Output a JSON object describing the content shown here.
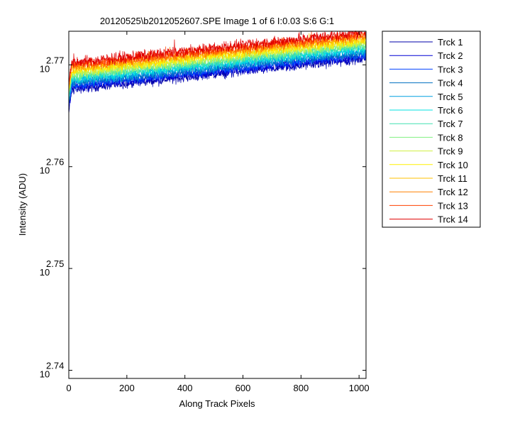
{
  "chart_data": {
    "type": "line",
    "title": "20120525\\b2012052607.SPE  Image 1 of 6  I:0.03  S:6  G:1",
    "xlabel": "Along Track Pixels",
    "ylabel": "Intensity (ADU)",
    "x_scale": "linear",
    "y_scale": "log",
    "xlim": [
      0,
      1024
    ],
    "ylim_log10": [
      2.7392,
      2.7733
    ],
    "grid": false,
    "legend_position": "outside-right",
    "x_ticks": [
      "0",
      "200",
      "400",
      "600",
      "800",
      "1000"
    ],
    "x_tick_values": [
      0,
      200,
      400,
      600,
      800,
      1000
    ],
    "y_ticks": [
      {
        "base": "10",
        "exponent": "2.74",
        "log10": 2.74
      },
      {
        "base": "10",
        "exponent": "2.75",
        "log10": 2.75
      },
      {
        "base": "10",
        "exponent": "2.76",
        "log10": 2.76
      },
      {
        "base": "10",
        "exponent": "2.77",
        "log10": 2.77
      }
    ],
    "series_trend_note": "",
    "series": [
      {
        "name": "Trck 1",
        "color": "#0000AA",
        "log10_at_x": [
          [
            0,
            2.7652
          ],
          [
            10,
            2.7676
          ],
          [
            1024,
            2.7706
          ]
        ],
        "noise": 0.0007
      },
      {
        "name": "Trck 2",
        "color": "#0000D4",
        "log10_at_x": [
          [
            0,
            2.7656
          ],
          [
            10,
            2.7678
          ],
          [
            1024,
            2.7708
          ]
        ],
        "noise": 0.0007
      },
      {
        "name": "Trck 3",
        "color": "#0040FF",
        "log10_at_x": [
          [
            0,
            2.766
          ],
          [
            10,
            2.768
          ],
          [
            1024,
            2.771
          ]
        ],
        "noise": 0.0007
      },
      {
        "name": "Trck 4",
        "color": "#0070C0",
        "log10_at_x": [
          [
            0,
            2.7662
          ],
          [
            10,
            2.7682
          ],
          [
            1024,
            2.7712
          ]
        ],
        "noise": 0.0007
      },
      {
        "name": "Trck 5",
        "color": "#00A0E0",
        "log10_at_x": [
          [
            0,
            2.7664
          ],
          [
            10,
            2.7684
          ],
          [
            1024,
            2.7714
          ]
        ],
        "noise": 0.0007
      },
      {
        "name": "Trck 6",
        "color": "#00E0E0",
        "log10_at_x": [
          [
            0,
            2.7666
          ],
          [
            10,
            2.7686
          ],
          [
            1024,
            2.7716
          ]
        ],
        "noise": 0.0007
      },
      {
        "name": "Trck 7",
        "color": "#40E0B0",
        "log10_at_x": [
          [
            0,
            2.7668
          ],
          [
            10,
            2.7688
          ],
          [
            1024,
            2.7718
          ]
        ],
        "noise": 0.0007
      },
      {
        "name": "Trck 8",
        "color": "#80F080",
        "log10_at_x": [
          [
            0,
            2.767
          ],
          [
            10,
            2.769
          ],
          [
            1024,
            2.772
          ]
        ],
        "noise": 0.0007
      },
      {
        "name": "Trck 9",
        "color": "#D0F040",
        "log10_at_x": [
          [
            0,
            2.7672
          ],
          [
            10,
            2.7692
          ],
          [
            1024,
            2.7722
          ]
        ],
        "noise": 0.0007
      },
      {
        "name": "Trck 10",
        "color": "#FFF000",
        "log10_at_x": [
          [
            0,
            2.7674
          ],
          [
            10,
            2.7694
          ],
          [
            1024,
            2.7724
          ]
        ],
        "noise": 0.0007
      },
      {
        "name": "Trck 11",
        "color": "#FFC000",
        "log10_at_x": [
          [
            0,
            2.7676
          ],
          [
            10,
            2.7696
          ],
          [
            1024,
            2.7726
          ]
        ],
        "noise": 0.0007
      },
      {
        "name": "Trck 12",
        "color": "#FF8000",
        "log10_at_x": [
          [
            0,
            2.7678
          ],
          [
            10,
            2.7698
          ],
          [
            1024,
            2.7728
          ]
        ],
        "noise": 0.0007
      },
      {
        "name": "Trck 13",
        "color": "#FF4000",
        "log10_at_x": [
          [
            0,
            2.768
          ],
          [
            10,
            2.77
          ],
          [
            1024,
            2.773
          ]
        ],
        "noise": 0.0007
      },
      {
        "name": "Trck 14",
        "color": "#E00000",
        "log10_at_x": [
          [
            0,
            2.7682
          ],
          [
            10,
            2.7702
          ],
          [
            1024,
            2.7732
          ]
        ],
        "noise": 0.0008
      }
    ]
  }
}
